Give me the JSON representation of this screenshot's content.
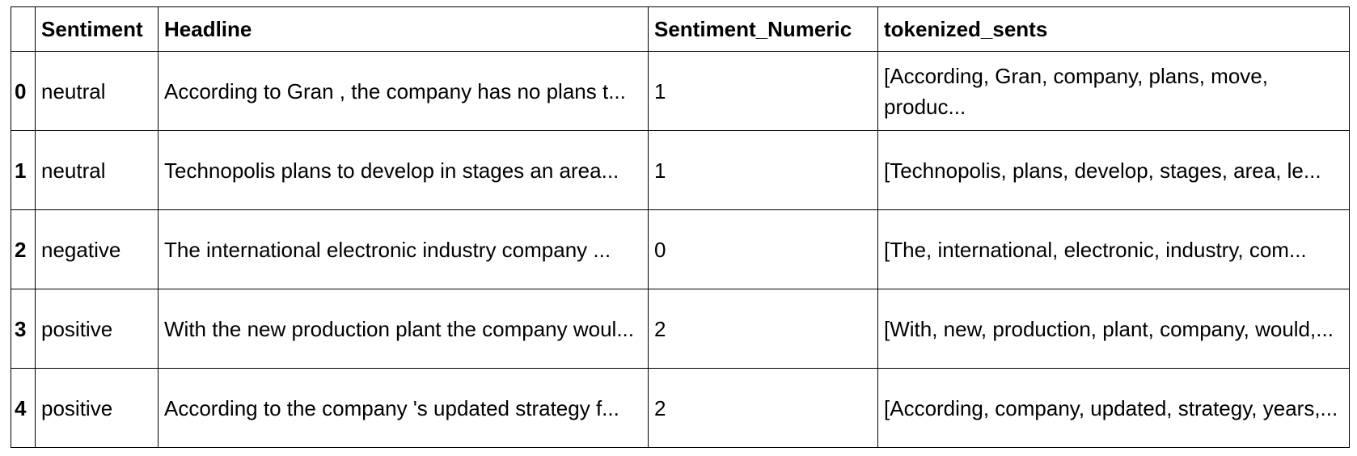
{
  "table": {
    "index_header": "",
    "columns": [
      "Sentiment",
      "Headline",
      "Sentiment_Numeric",
      "tokenized_sents"
    ],
    "rows": [
      {
        "index": "0",
        "sentiment": "neutral",
        "headline": "According to Gran , the company has no plans t...",
        "sentiment_numeric": "1",
        "tokenized_sents": "[According, Gran, company, plans, move, produc..."
      },
      {
        "index": "1",
        "sentiment": "neutral",
        "headline": "Technopolis plans to develop in stages an area...",
        "sentiment_numeric": "1",
        "tokenized_sents": "[Technopolis, plans, develop, stages, area, le..."
      },
      {
        "index": "2",
        "sentiment": "negative",
        "headline": "The international electronic industry company ...",
        "sentiment_numeric": "0",
        "tokenized_sents": "[The, international, electronic, industry, com..."
      },
      {
        "index": "3",
        "sentiment": "positive",
        "headline": "With the new production plant the company woul...",
        "sentiment_numeric": "2",
        "tokenized_sents": "[With, new, production, plant, company, would,..."
      },
      {
        "index": "4",
        "sentiment": "positive",
        "headline": "According to the company 's updated strategy f...",
        "sentiment_numeric": "2",
        "tokenized_sents": "[According, company, updated, strategy, years,..."
      }
    ]
  }
}
